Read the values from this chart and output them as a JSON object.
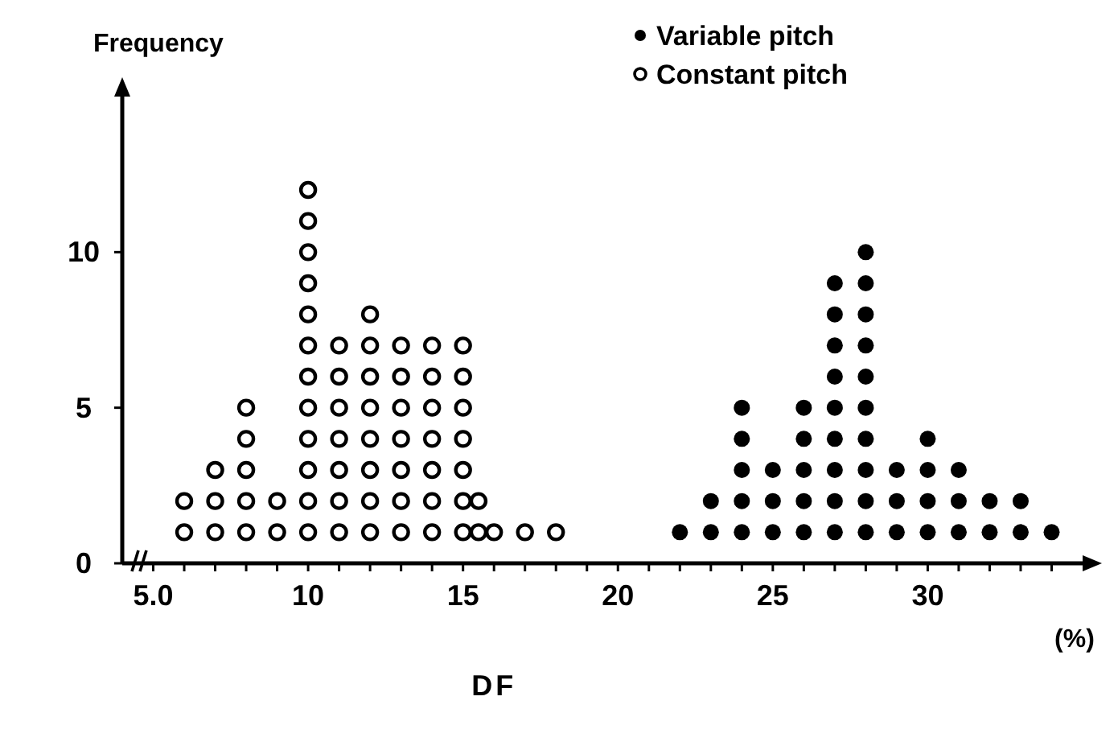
{
  "chart_data": {
    "type": "scatter",
    "ylabel": "Frequency",
    "xlabel": "DF",
    "annotations": [
      "(%)"
    ],
    "xlim": [
      4,
      35
    ],
    "ylim": [
      0,
      15
    ],
    "xticks": [
      {
        "value": 5,
        "label": "5.0"
      },
      {
        "value": 6,
        "label": null
      },
      {
        "value": 7,
        "label": null
      },
      {
        "value": 8,
        "label": null
      },
      {
        "value": 9,
        "label": null
      },
      10,
      {
        "value": 11,
        "label": null
      },
      {
        "value": 12,
        "label": null
      },
      {
        "value": 13,
        "label": null
      },
      {
        "value": 14,
        "label": null
      },
      15,
      {
        "value": 16,
        "label": null
      },
      {
        "value": 17,
        "label": null
      },
      {
        "value": 18,
        "label": null
      },
      {
        "value": 19,
        "label": null
      },
      20,
      {
        "value": 21,
        "label": null
      },
      {
        "value": 22,
        "label": null
      },
      {
        "value": 23,
        "label": null
      },
      {
        "value": 24,
        "label": null
      },
      25,
      {
        "value": 26,
        "label": null
      },
      {
        "value": 27,
        "label": null
      },
      {
        "value": 28,
        "label": null
      },
      {
        "value": 29,
        "label": null
      },
      30,
      {
        "value": 31,
        "label": null
      },
      {
        "value": 32,
        "label": null
      },
      {
        "value": 33,
        "label": null
      },
      {
        "value": 34,
        "label": null
      }
    ],
    "yticks": [
      0,
      5,
      10
    ],
    "grid": false,
    "legend": "top",
    "marker": "circle",
    "series": [
      {
        "name": "Variable pitch",
        "color": "#000000",
        "x": [
          22,
          23,
          23,
          24,
          24,
          24,
          24,
          24,
          25,
          25,
          25,
          26,
          26,
          26,
          26,
          26,
          27,
          27,
          27,
          27,
          27,
          27,
          27,
          27,
          27,
          28,
          28,
          28,
          28,
          28,
          28,
          28,
          28,
          28,
          28,
          29,
          29,
          29,
          30,
          30,
          30,
          30,
          31,
          31,
          31,
          32,
          32,
          33,
          33,
          34
        ],
        "values": [
          1,
          1,
          2,
          1,
          2,
          3,
          4,
          5,
          1,
          2,
          3,
          1,
          2,
          3,
          4,
          5,
          1,
          2,
          3,
          4,
          5,
          6,
          7,
          8,
          9,
          1,
          2,
          3,
          4,
          5,
          6,
          7,
          8,
          9,
          10,
          1,
          2,
          3,
          1,
          2,
          3,
          4,
          1,
          2,
          3,
          1,
          2,
          1,
          2,
          1
        ]
      },
      {
        "name": "Constant pitch",
        "color": "#000000",
        "x": [
          6,
          6,
          7,
          7,
          7,
          8,
          8,
          8,
          8,
          8,
          9,
          9,
          10,
          10,
          10,
          10,
          10,
          10,
          10,
          10,
          10,
          10,
          10,
          10,
          11,
          11,
          11,
          11,
          11,
          11,
          11,
          12,
          12,
          12,
          12,
          12,
          12,
          12,
          12,
          13,
          13,
          13,
          13,
          13,
          13,
          13,
          14,
          14,
          14,
          14,
          14,
          14,
          14,
          15,
          15,
          15,
          15,
          15,
          15,
          15,
          15.5,
          15.5,
          16,
          17,
          18
        ],
        "values": [
          1,
          2,
          1,
          2,
          3,
          1,
          2,
          3,
          4,
          5,
          1,
          2,
          1,
          2,
          3,
          4,
          5,
          6,
          7,
          8,
          9,
          10,
          11,
          12,
          1,
          2,
          3,
          4,
          5,
          6,
          7,
          1,
          2,
          3,
          4,
          5,
          6,
          7,
          8,
          1,
          2,
          3,
          4,
          5,
          6,
          7,
          1,
          2,
          3,
          4,
          5,
          6,
          7,
          1,
          2,
          3,
          4,
          5,
          6,
          7,
          1,
          2,
          1,
          1,
          1
        ]
      }
    ]
  }
}
